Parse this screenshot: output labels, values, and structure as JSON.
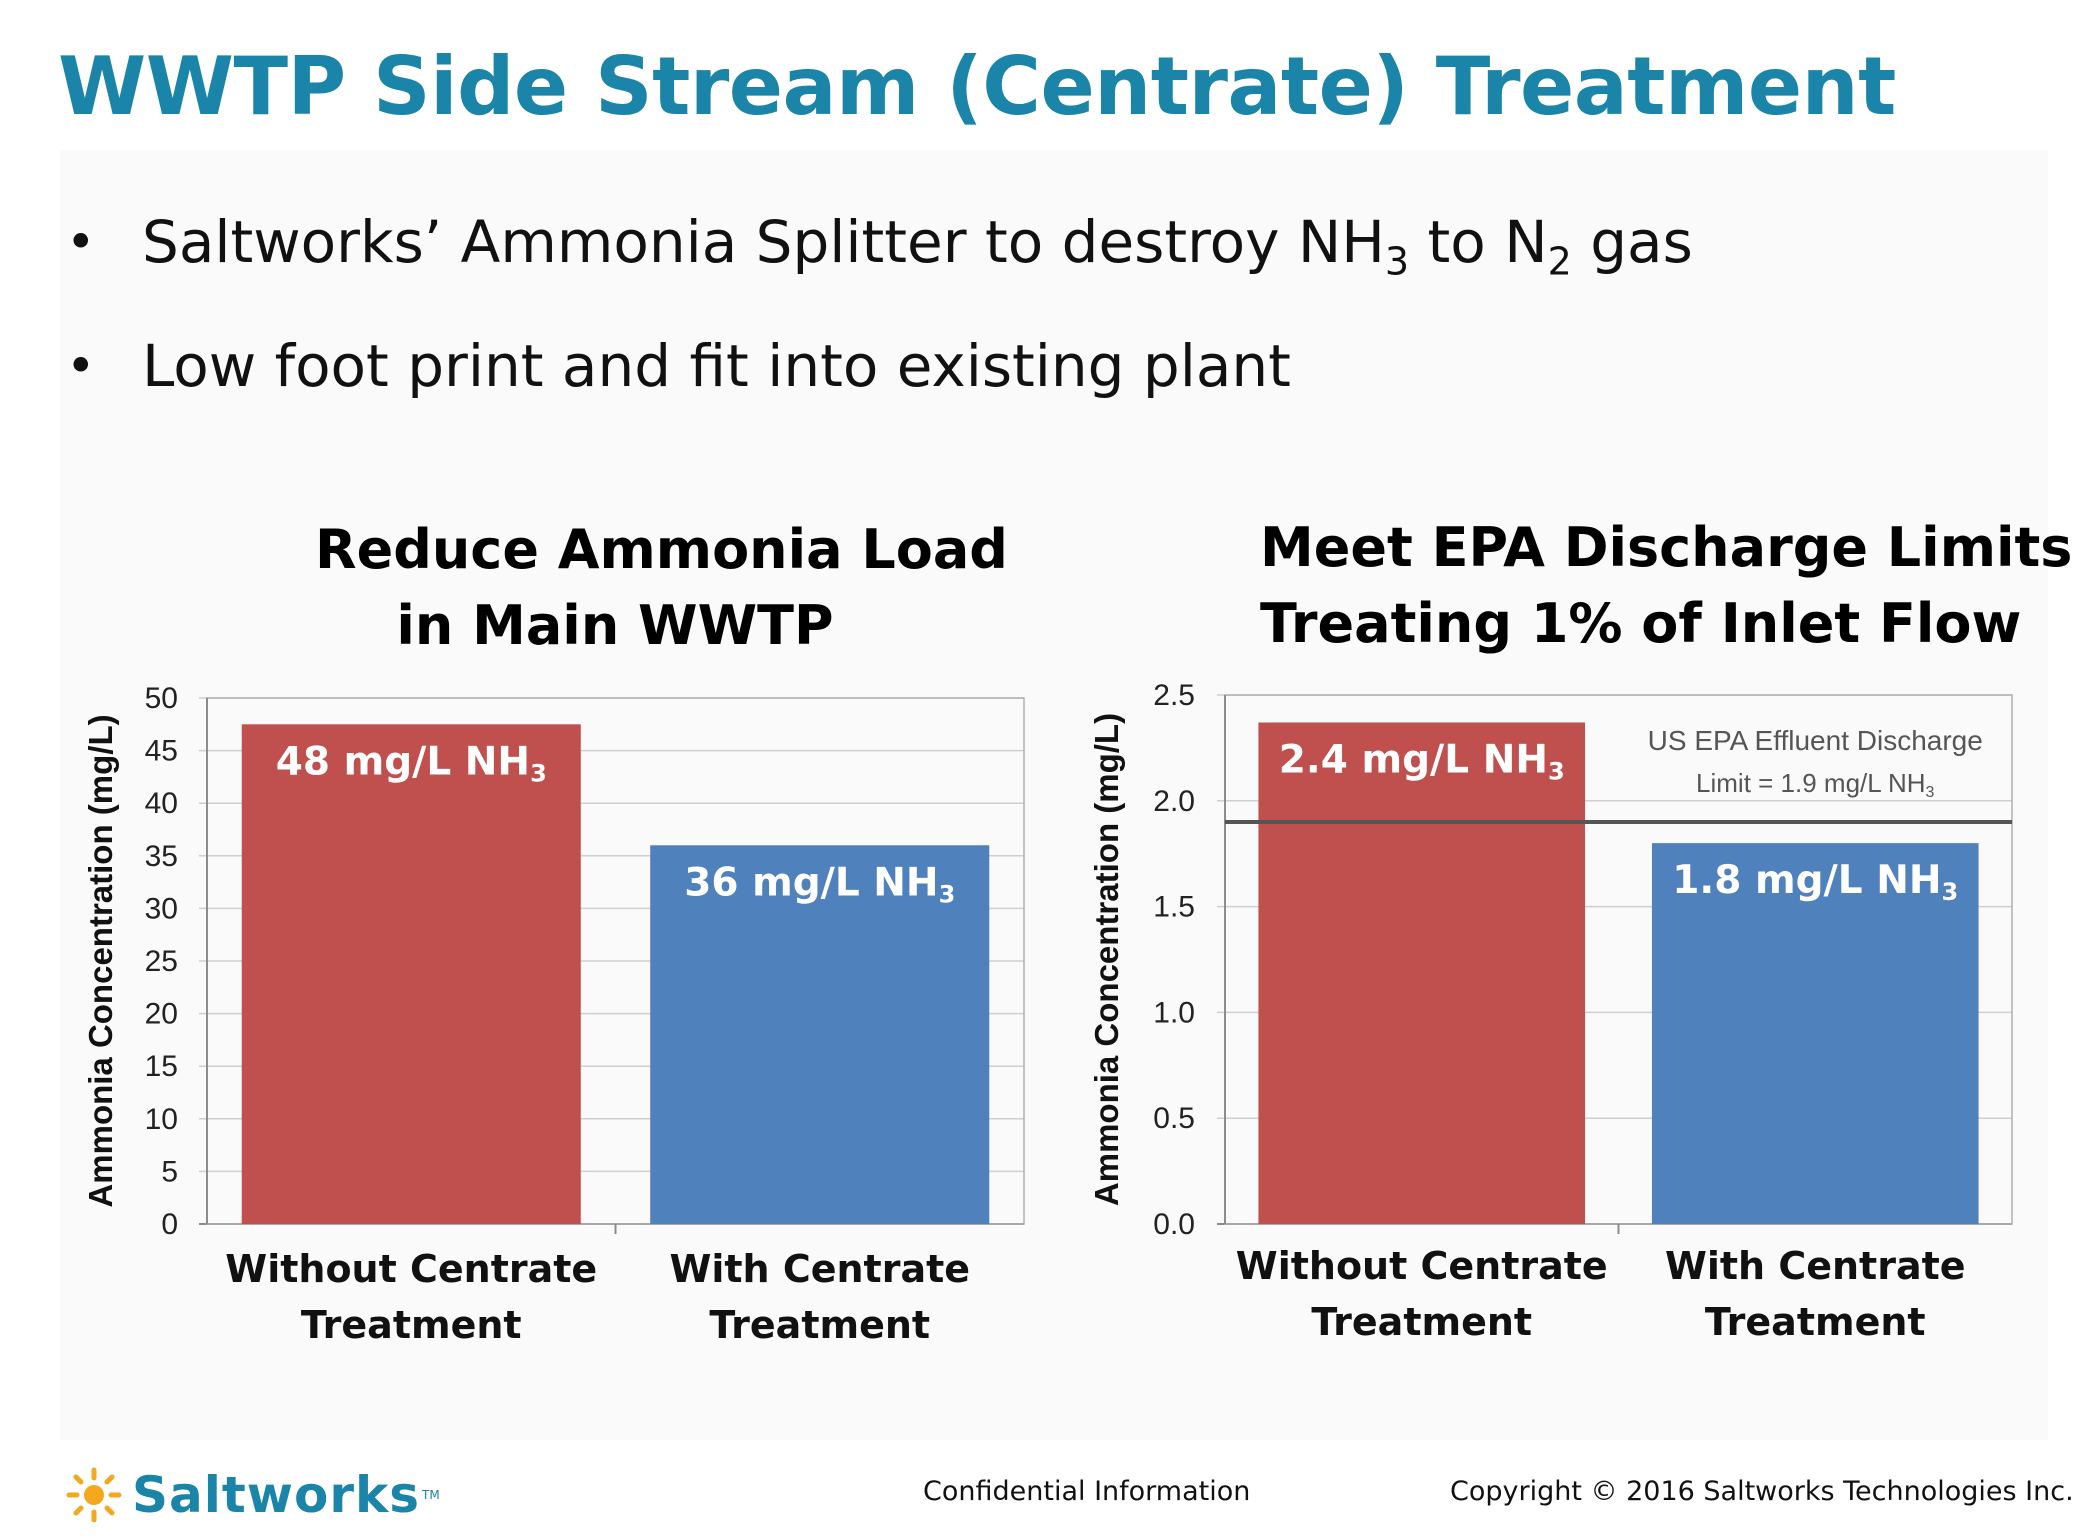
{
  "slide": {
    "title": "WWTP Side Stream (Centrate) Treatment",
    "bullets": [
      {
        "parts": [
          "Saltworks’ Ammonia Splitter to destroy NH",
          "3",
          " to N",
          "2",
          " gas"
        ]
      },
      {
        "parts": [
          "Low foot print and fit into existing plant"
        ]
      }
    ]
  },
  "chart_data": [
    {
      "type": "bar",
      "title_lines": [
        "Reduce Ammonia Load",
        "in Main WWTP"
      ],
      "ylabel": "Ammonia Concentration (mg/L)",
      "categories": [
        [
          "Without Centrate",
          "Treatment"
        ],
        [
          "With Centrate",
          "Treatment"
        ]
      ],
      "values": [
        47.5,
        36
      ],
      "data_labels": [
        [
          "48 mg/L NH",
          "3"
        ],
        [
          "36 mg/L NH",
          "3"
        ]
      ],
      "bar_colors": [
        "#c0504d",
        "#4f81bd"
      ],
      "ylim": [
        0,
        50
      ],
      "yticks": [
        "0",
        "5",
        "10",
        "15",
        "20",
        "25",
        "30",
        "35",
        "40",
        "45",
        "50"
      ],
      "grid": true
    },
    {
      "type": "bar",
      "title_lines": [
        "Meet EPA Discharge Limits",
        "Treating 1% of Inlet Flow"
      ],
      "ylabel": "Ammonia Concentration (mg/L)",
      "categories": [
        [
          "Without Centrate",
          "Treatment"
        ],
        [
          "With Centrate",
          "Treatment"
        ]
      ],
      "values": [
        2.37,
        1.8
      ],
      "data_labels": [
        [
          "2.4 mg/L NH",
          "3"
        ],
        [
          "1.8 mg/L NH",
          "3"
        ]
      ],
      "bar_colors": [
        "#c0504d",
        "#4f81bd"
      ],
      "ylim": [
        0,
        2.5
      ],
      "yticks": [
        "0.0",
        "0.5",
        "1.0",
        "1.5",
        "2.0",
        "2.5"
      ],
      "grid": true,
      "reference_line": {
        "value": 1.9,
        "label_lines": [
          [
            "US EPA Effluent Discharge"
          ],
          [
            "Limit = 1.9 mg/L NH",
            "3"
          ]
        ],
        "color": "#555555"
      }
    }
  ],
  "footer": {
    "logo_text": "Saltworks",
    "trademark": "TM",
    "logo_icon": "sun-icon",
    "confidential": "Confidential Information",
    "copyright": "Copyright © 2016 Saltworks Technologies Inc."
  }
}
